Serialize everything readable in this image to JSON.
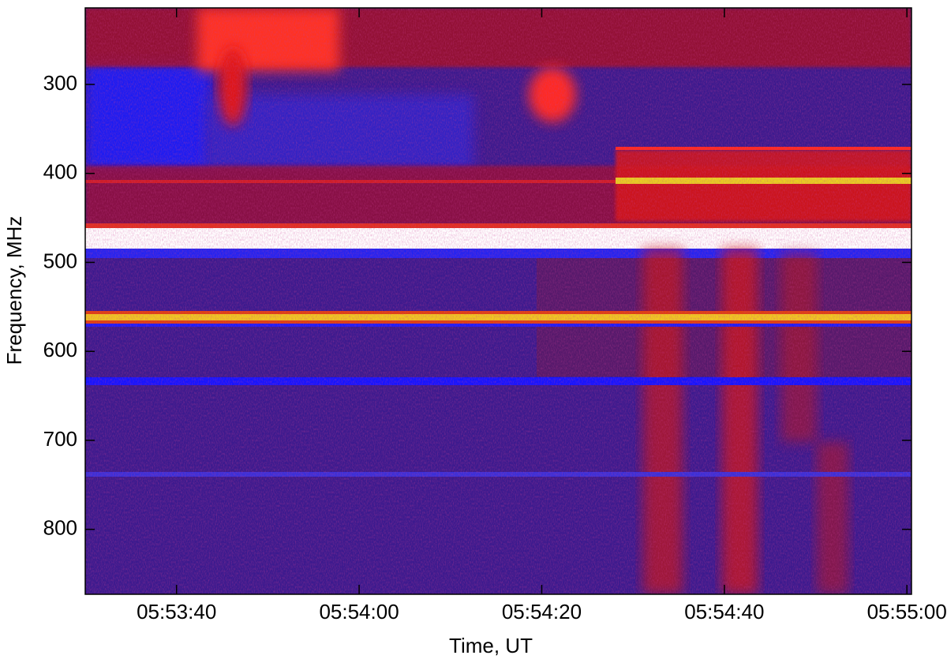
{
  "chart_data": {
    "type": "heatmap",
    "x_label": "Time, UT",
    "y_label": "Frequency, MHz",
    "xlim": [
      30,
      120.5
    ],
    "xticks": [
      {
        "value": 40,
        "label": "05:53:40"
      },
      {
        "value": 60,
        "label": "05:54:00"
      },
      {
        "value": 80,
        "label": "05:54:20"
      },
      {
        "value": 100,
        "label": "05:54:40"
      },
      {
        "value": 120,
        "label": "05:55:00"
      }
    ],
    "ylim": [
      873,
      214
    ],
    "yticks": [
      300,
      400,
      500,
      600,
      700,
      800
    ]
  }
}
